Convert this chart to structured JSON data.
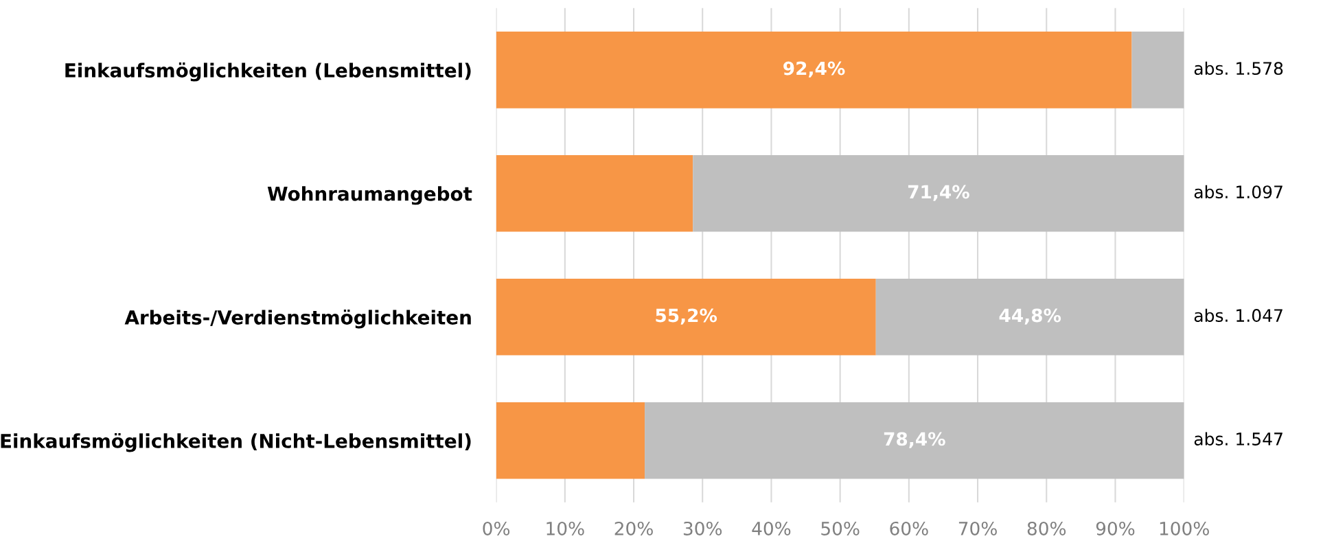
{
  "chart_data": {
    "type": "bar",
    "orientation": "horizontal",
    "stacked": true,
    "categories": [
      "Einkaufsmöglichkeiten (Lebensmittel)",
      "Wohnraumangebot",
      "Arbeits-/Verdienstmöglichkeiten",
      "Einkaufsmöglichkeiten (Nicht-Lebensmittel)"
    ],
    "series": [
      {
        "color": "#f79646",
        "values": [
          92.4,
          28.6,
          55.2,
          21.6
        ],
        "value_labels": [
          "92,4%",
          null,
          "55,2%",
          null
        ]
      },
      {
        "color": "#bfbfbf",
        "values": [
          7.6,
          71.4,
          44.8,
          78.4
        ],
        "value_labels": [
          null,
          "71,4%",
          "44,8%",
          "78,4%"
        ]
      }
    ],
    "xlim": [
      0,
      100
    ],
    "xticks": [
      {
        "value": 0,
        "label": "0%"
      },
      {
        "value": 10,
        "label": "10%"
      },
      {
        "value": 20,
        "label": "20%"
      },
      {
        "value": 30,
        "label": "30%"
      },
      {
        "value": 40,
        "label": "40%"
      },
      {
        "value": 50,
        "label": "50%"
      },
      {
        "value": 60,
        "label": "60%"
      },
      {
        "value": 70,
        "label": "70%"
      },
      {
        "value": 80,
        "label": "80%"
      },
      {
        "value": 90,
        "label": "90%"
      },
      {
        "value": 100,
        "label": "100%"
      }
    ],
    "grid": "x",
    "legend": false,
    "annotations": [
      "abs. 1.578",
      "abs. 1.097",
      "abs. 1.047",
      "abs. 1.547"
    ]
  }
}
